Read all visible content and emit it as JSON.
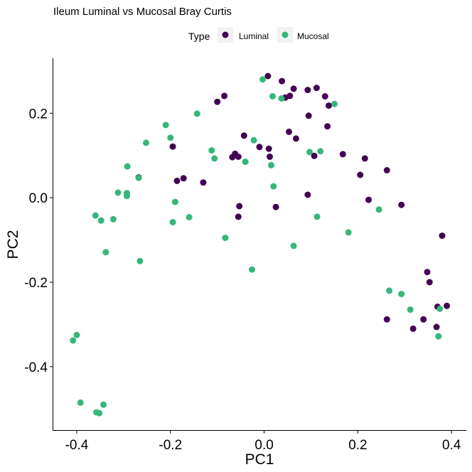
{
  "chart_data": {
    "type": "scatter",
    "title": "Ileum Luminal vs Mucosal Bray Curtis",
    "xlabel": "PC1",
    "ylabel": "PC2",
    "xlim": [
      -0.45,
      0.43
    ],
    "ylim": [
      -0.55,
      0.33
    ],
    "xticks": [
      -0.4,
      -0.2,
      0.0,
      0.2,
      0.4
    ],
    "xtick_labels": [
      "-0.4",
      "-0.2",
      "0.0",
      "0.2",
      "0.4"
    ],
    "yticks": [
      -0.4,
      -0.2,
      0.0,
      0.2
    ],
    "ytick_labels": [
      "-0.4",
      "-0.2",
      "0.0",
      "0.2"
    ],
    "grid": false,
    "legend": {
      "title": "Type",
      "position": "top"
    },
    "series": [
      {
        "name": "Luminal",
        "color": "#440154",
        "points": [
          [
            0.008,
            0.288
          ],
          [
            0.038,
            0.276
          ],
          [
            0.063,
            0.258
          ],
          [
            0.112,
            0.26
          ],
          [
            0.093,
            0.255
          ],
          [
            0.045,
            0.237
          ],
          [
            0.055,
            0.241
          ],
          [
            0.13,
            0.24
          ],
          [
            0.138,
            0.218
          ],
          [
            -0.085,
            0.241
          ],
          [
            -0.1,
            0.227
          ],
          [
            0.095,
            0.194
          ],
          [
            0.135,
            0.169
          ],
          [
            0.053,
            0.156
          ],
          [
            0.068,
            0.14
          ],
          [
            -0.043,
            0.147
          ],
          [
            -0.01,
            0.12
          ],
          [
            0.01,
            0.116
          ],
          [
            -0.195,
            0.121
          ],
          [
            0.107,
            0.099
          ],
          [
            0.168,
            0.103
          ],
          [
            0.215,
            0.093
          ],
          [
            -0.068,
            0.096
          ],
          [
            -0.062,
            0.104
          ],
          [
            -0.055,
            0.097
          ],
          [
            0.012,
            0.097
          ],
          [
            0.262,
            0.065
          ],
          [
            0.205,
            0.054
          ],
          [
            -0.268,
            0.048
          ],
          [
            -0.172,
            0.046
          ],
          [
            -0.186,
            0.04
          ],
          [
            -0.13,
            0.036
          ],
          [
            0.093,
            0.007
          ],
          [
            0.223,
            -0.005
          ],
          [
            0.293,
            -0.017
          ],
          [
            -0.053,
            -0.02
          ],
          [
            0.025,
            -0.022
          ],
          [
            -0.055,
            -0.045
          ],
          [
            0.38,
            -0.09
          ],
          [
            0.348,
            -0.176
          ],
          [
            0.353,
            -0.2
          ],
          [
            0.37,
            -0.258
          ],
          [
            0.39,
            -0.256
          ],
          [
            0.262,
            -0.288
          ],
          [
            0.34,
            -0.288
          ],
          [
            0.318,
            -0.31
          ],
          [
            0.368,
            -0.306
          ]
        ]
      },
      {
        "name": "Mucosal",
        "color": "#35b779",
        "points": [
          [
            -0.003,
            0.28
          ],
          [
            0.018,
            0.24
          ],
          [
            0.037,
            0.235
          ],
          [
            0.15,
            0.222
          ],
          [
            -0.143,
            0.199
          ],
          [
            -0.21,
            0.172
          ],
          [
            -0.2,
            0.142
          ],
          [
            -0.252,
            0.13
          ],
          [
            -0.022,
            0.136
          ],
          [
            -0.112,
            0.112
          ],
          [
            -0.106,
            0.093
          ],
          [
            0.097,
            0.108
          ],
          [
            0.12,
            0.11
          ],
          [
            -0.04,
            0.085
          ],
          [
            0.015,
            0.077
          ],
          [
            -0.292,
            0.074
          ],
          [
            -0.268,
            0.047
          ],
          [
            0.02,
            0.027
          ],
          [
            -0.312,
            0.012
          ],
          [
            -0.293,
            0.011
          ],
          [
            -0.293,
            0.004
          ],
          [
            -0.19,
            -0.01
          ],
          [
            0.245,
            -0.028
          ],
          [
            -0.16,
            -0.046
          ],
          [
            0.113,
            -0.045
          ],
          [
            -0.36,
            -0.042
          ],
          [
            -0.348,
            -0.054
          ],
          [
            -0.322,
            -0.051
          ],
          [
            -0.195,
            -0.058
          ],
          [
            0.18,
            -0.082
          ],
          [
            -0.083,
            -0.095
          ],
          [
            0.063,
            -0.114
          ],
          [
            -0.338,
            -0.129
          ],
          [
            -0.265,
            -0.15
          ],
          [
            -0.026,
            -0.17
          ],
          [
            0.267,
            -0.22
          ],
          [
            0.293,
            -0.228
          ],
          [
            0.375,
            -0.263
          ],
          [
            0.312,
            -0.265
          ],
          [
            0.372,
            -0.328
          ],
          [
            -0.4,
            -0.325
          ],
          [
            -0.408,
            -0.338
          ],
          [
            -0.392,
            -0.485
          ],
          [
            -0.343,
            -0.49
          ],
          [
            -0.358,
            -0.508
          ],
          [
            -0.352,
            -0.51
          ]
        ]
      }
    ]
  }
}
